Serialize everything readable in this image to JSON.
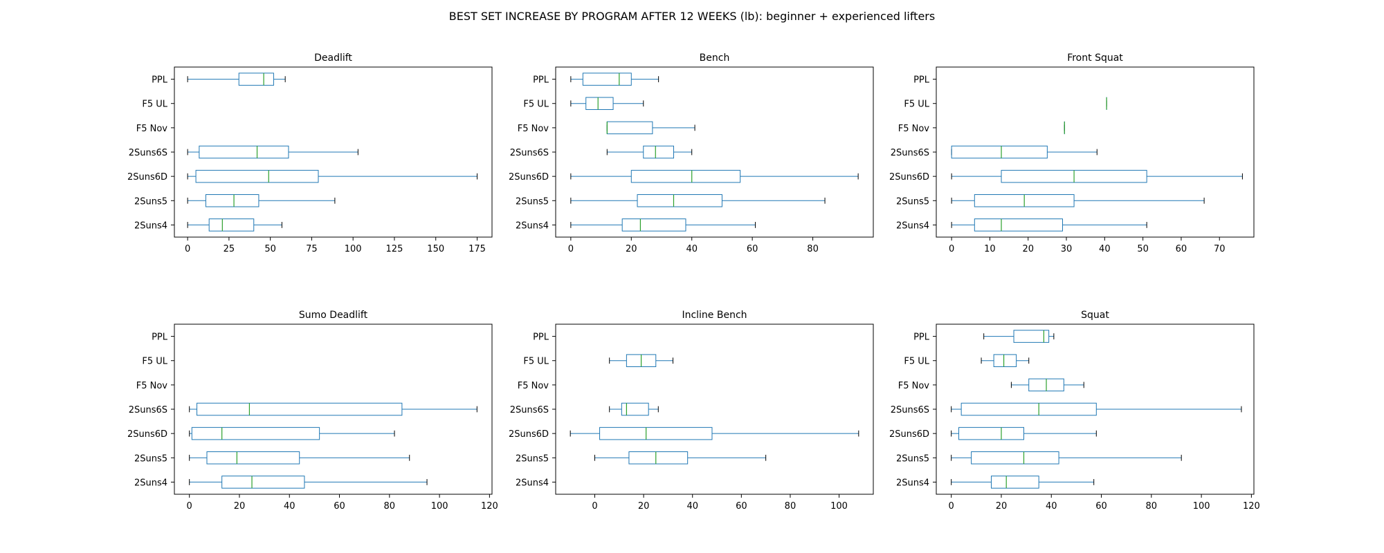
{
  "figure": {
    "title": "BEST SET INCREASE BY PROGRAM AFTER 12 WEEKS (lb): beginner + experienced lifters"
  },
  "colors": {
    "box": "#1f77b4",
    "median": "#2ca02c",
    "whisker": "#1f77b4",
    "cap": "#000000",
    "axes": "#000000"
  },
  "chart_data": [
    {
      "type": "boxplot",
      "orientation": "horizontal",
      "title": "Deadlift",
      "categories": [
        "PPL",
        "F5 UL",
        "F5 Nov",
        "2Suns6S",
        "2Suns6D",
        "2Suns5",
        "2Suns4"
      ],
      "xlim": [
        -8,
        184
      ],
      "xticks": [
        0,
        25,
        50,
        75,
        100,
        125,
        150,
        175
      ],
      "boxes": [
        {
          "label": "PPL",
          "whislo": 0,
          "q1": 31,
          "med": 46,
          "q3": 52,
          "whishi": 59
        },
        {
          "label": "F5 UL",
          "whislo": null,
          "q1": null,
          "med": null,
          "q3": null,
          "whishi": null
        },
        {
          "label": "F5 Nov",
          "whislo": null,
          "q1": null,
          "med": null,
          "q3": null,
          "whishi": null
        },
        {
          "label": "2Suns6S",
          "whislo": 0,
          "q1": 7,
          "med": 42,
          "q3": 61,
          "whishi": 103
        },
        {
          "label": "2Suns6D",
          "whislo": 0,
          "q1": 5,
          "med": 49,
          "q3": 79,
          "whishi": 175
        },
        {
          "label": "2Suns5",
          "whislo": 0,
          "q1": 11,
          "med": 28,
          "q3": 43,
          "whishi": 89
        },
        {
          "label": "2Suns4",
          "whislo": 0,
          "q1": 13,
          "med": 21,
          "q3": 40,
          "whishi": 57
        }
      ]
    },
    {
      "type": "boxplot",
      "orientation": "horizontal",
      "title": "Bench",
      "categories": [
        "PPL",
        "F5 UL",
        "F5 Nov",
        "2Suns6S",
        "2Suns6D",
        "2Suns5",
        "2Suns4"
      ],
      "xlim": [
        -5,
        100
      ],
      "xticks": [
        0,
        20,
        40,
        60,
        80
      ],
      "boxes": [
        {
          "label": "PPL",
          "whislo": 0,
          "q1": 4,
          "med": 16,
          "q3": 20,
          "whishi": 29
        },
        {
          "label": "F5 UL",
          "whislo": 0,
          "q1": 5,
          "med": 9,
          "q3": 14,
          "whishi": 24
        },
        {
          "label": "F5 Nov",
          "whislo": 12,
          "q1": 12,
          "med": 12,
          "q3": 27,
          "whishi": 41
        },
        {
          "label": "2Suns6S",
          "whislo": 12,
          "q1": 24,
          "med": 28,
          "q3": 34,
          "whishi": 40
        },
        {
          "label": "2Suns6D",
          "whislo": 0,
          "q1": 20,
          "med": 40,
          "q3": 56,
          "whishi": 95
        },
        {
          "label": "2Suns5",
          "whislo": 0,
          "q1": 22,
          "med": 34,
          "q3": 50,
          "whishi": 84
        },
        {
          "label": "2Suns4",
          "whislo": 0,
          "q1": 17,
          "med": 23,
          "q3": 38,
          "whishi": 61
        }
      ]
    },
    {
      "type": "boxplot",
      "orientation": "horizontal",
      "title": "Front Squat",
      "categories": [
        "PPL",
        "F5 UL",
        "F5 Nov",
        "2Suns6S",
        "2Suns6D",
        "2Suns5",
        "2Suns4"
      ],
      "xlim": [
        -4,
        79
      ],
      "xticks": [
        0,
        10,
        20,
        30,
        40,
        50,
        60,
        70
      ],
      "boxes": [
        {
          "label": "PPL",
          "whislo": null,
          "q1": null,
          "med": null,
          "q3": null,
          "whishi": null
        },
        {
          "label": "F5 UL",
          "whislo": 40.5,
          "q1": 40.5,
          "med": 40.5,
          "q3": 40.5,
          "whishi": 40.5
        },
        {
          "label": "F5 Nov",
          "whislo": 29.5,
          "q1": 29.5,
          "med": 29.5,
          "q3": 29.5,
          "whishi": 29.5
        },
        {
          "label": "2Suns6S",
          "whislo": 0,
          "q1": 0,
          "med": 13,
          "q3": 25,
          "whishi": 38
        },
        {
          "label": "2Suns6D",
          "whislo": 0,
          "q1": 13,
          "med": 32,
          "q3": 51,
          "whishi": 76
        },
        {
          "label": "2Suns5",
          "whislo": 0,
          "q1": 6,
          "med": 19,
          "q3": 32,
          "whishi": 66
        },
        {
          "label": "2Suns4",
          "whislo": 0,
          "q1": 6,
          "med": 13,
          "q3": 29,
          "whishi": 51
        }
      ]
    },
    {
      "type": "boxplot",
      "orientation": "horizontal",
      "title": "Sumo Deadlift",
      "categories": [
        "PPL",
        "F5 UL",
        "F5 Nov",
        "2Suns6S",
        "2Suns6D",
        "2Suns5",
        "2Suns4"
      ],
      "xlim": [
        -6,
        121
      ],
      "xticks": [
        0,
        20,
        40,
        60,
        80,
        100,
        120
      ],
      "boxes": [
        {
          "label": "PPL",
          "whislo": null,
          "q1": null,
          "med": null,
          "q3": null,
          "whishi": null
        },
        {
          "label": "F5 UL",
          "whislo": null,
          "q1": null,
          "med": null,
          "q3": null,
          "whishi": null
        },
        {
          "label": "F5 Nov",
          "whislo": null,
          "q1": null,
          "med": null,
          "q3": null,
          "whishi": null
        },
        {
          "label": "2Suns6S",
          "whislo": 0,
          "q1": 3,
          "med": 24,
          "q3": 85,
          "whishi": 115
        },
        {
          "label": "2Suns6D",
          "whislo": 0,
          "q1": 1,
          "med": 13,
          "q3": 52,
          "whishi": 82
        },
        {
          "label": "2Suns5",
          "whislo": 0,
          "q1": 7,
          "med": 19,
          "q3": 44,
          "whishi": 88
        },
        {
          "label": "2Suns4",
          "whislo": 0,
          "q1": 13,
          "med": 25,
          "q3": 46,
          "whishi": 95
        }
      ]
    },
    {
      "type": "boxplot",
      "orientation": "horizontal",
      "title": "Incline Bench",
      "categories": [
        "PPL",
        "F5 UL",
        "F5 Nov",
        "2Suns6S",
        "2Suns6D",
        "2Suns5",
        "2Suns4"
      ],
      "xlim": [
        -16,
        114
      ],
      "xticks": [
        0,
        20,
        40,
        60,
        80,
        100
      ],
      "boxes": [
        {
          "label": "PPL",
          "whislo": null,
          "q1": null,
          "med": null,
          "q3": null,
          "whishi": null
        },
        {
          "label": "F5 UL",
          "whislo": 6,
          "q1": 13,
          "med": 19,
          "q3": 25,
          "whishi": 32
        },
        {
          "label": "F5 Nov",
          "whislo": null,
          "q1": null,
          "med": null,
          "q3": null,
          "whishi": null
        },
        {
          "label": "2Suns6S",
          "whislo": 6,
          "q1": 11,
          "med": 13,
          "q3": 22,
          "whishi": 26
        },
        {
          "label": "2Suns6D",
          "whislo": -10,
          "q1": 2,
          "med": 21,
          "q3": 48,
          "whishi": 108
        },
        {
          "label": "2Suns5",
          "whislo": 0,
          "q1": 14,
          "med": 25,
          "q3": 38,
          "whishi": 70
        },
        {
          "label": "2Suns4",
          "whislo": null,
          "q1": null,
          "med": null,
          "q3": null,
          "whishi": null
        }
      ]
    },
    {
      "type": "boxplot",
      "orientation": "horizontal",
      "title": "Squat",
      "categories": [
        "PPL",
        "F5 UL",
        "F5 Nov",
        "2Suns6S",
        "2Suns6D",
        "2Suns5",
        "2Suns4"
      ],
      "xlim": [
        -6,
        121
      ],
      "xticks": [
        0,
        20,
        40,
        60,
        80,
        100,
        120
      ],
      "boxes": [
        {
          "label": "PPL",
          "whislo": 13,
          "q1": 25,
          "med": 37,
          "q3": 39,
          "whishi": 41
        },
        {
          "label": "F5 UL",
          "whislo": 12,
          "q1": 17,
          "med": 21,
          "q3": 26,
          "whishi": 31
        },
        {
          "label": "F5 Nov",
          "whislo": 24,
          "q1": 31,
          "med": 38,
          "q3": 45,
          "whishi": 53
        },
        {
          "label": "2Suns6S",
          "whislo": 0,
          "q1": 4,
          "med": 35,
          "q3": 58,
          "whishi": 116
        },
        {
          "label": "2Suns6D",
          "whislo": 0,
          "q1": 3,
          "med": 20,
          "q3": 29,
          "whishi": 58
        },
        {
          "label": "2Suns5",
          "whislo": 0,
          "q1": 8,
          "med": 29,
          "q3": 43,
          "whishi": 92
        },
        {
          "label": "2Suns4",
          "whislo": 0,
          "q1": 16,
          "med": 22,
          "q3": 35,
          "whishi": 57
        }
      ]
    }
  ]
}
